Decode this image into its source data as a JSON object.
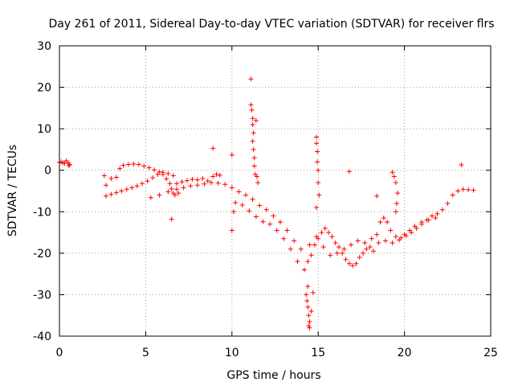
{
  "chart_data": {
    "type": "scatter",
    "title": "Day 261 of 2011, Sidereal Day-to-day VTEC variation (SDTVAR) for receiver flrs",
    "xlabel": "GPS time / hours",
    "ylabel": "SDTVAR / TECUs",
    "xlim": [
      0,
      25
    ],
    "ylim": [
      -40,
      30
    ],
    "x_ticks": [
      0,
      5,
      10,
      15,
      20,
      25
    ],
    "y_ticks": [
      -40,
      -30,
      -20,
      -10,
      0,
      10,
      20,
      30
    ],
    "grid": true,
    "marker": "+",
    "marker_color": "#ff0000",
    "series": [
      {
        "name": "SDTVAR",
        "color": "#ff0000",
        "points": [
          [
            0.0,
            1.9
          ],
          [
            0.1,
            2.0
          ],
          [
            0.2,
            1.8
          ],
          [
            0.3,
            1.7
          ],
          [
            0.4,
            2.3
          ],
          [
            0.5,
            1.8
          ],
          [
            0.55,
            1.1
          ],
          [
            0.6,
            1.4
          ],
          [
            2.6,
            -1.3
          ],
          [
            2.7,
            -3.6
          ],
          [
            3.0,
            -2.0
          ],
          [
            3.3,
            -1.7
          ],
          [
            3.5,
            0.4
          ],
          [
            3.7,
            1.2
          ],
          [
            4.0,
            1.4
          ],
          [
            4.3,
            1.5
          ],
          [
            4.6,
            1.4
          ],
          [
            4.9,
            1.0
          ],
          [
            5.2,
            0.6
          ],
          [
            5.5,
            0.1
          ],
          [
            5.8,
            -0.4
          ],
          [
            6.0,
            -1.0
          ],
          [
            6.2,
            -2.1
          ],
          [
            6.4,
            -3.2
          ],
          [
            6.5,
            -4.5
          ],
          [
            6.6,
            -5.5
          ],
          [
            6.7,
            -6.0
          ],
          [
            6.9,
            -5.5
          ],
          [
            2.7,
            -6.2
          ],
          [
            3.0,
            -5.8
          ],
          [
            3.3,
            -5.4
          ],
          [
            3.6,
            -5.0
          ],
          [
            3.9,
            -4.6
          ],
          [
            4.2,
            -4.2
          ],
          [
            4.5,
            -3.8
          ],
          [
            4.8,
            -3.2
          ],
          [
            5.1,
            -2.6
          ],
          [
            5.4,
            -1.8
          ],
          [
            5.7,
            -1.0
          ],
          [
            6.0,
            -0.5
          ],
          [
            6.3,
            -0.8
          ],
          [
            6.6,
            -1.3
          ],
          [
            6.8,
            -3.2
          ],
          [
            7.1,
            -2.8
          ],
          [
            7.4,
            -2.5
          ],
          [
            7.7,
            -2.2
          ],
          [
            8.0,
            -2.3
          ],
          [
            8.3,
            -2.0
          ],
          [
            8.6,
            -2.6
          ],
          [
            8.9,
            -1.5
          ],
          [
            9.1,
            -1.0
          ],
          [
            5.3,
            -6.6
          ],
          [
            5.8,
            -6.0
          ],
          [
            6.3,
            -5.2
          ],
          [
            6.8,
            -4.6
          ],
          [
            7.2,
            -4.2
          ],
          [
            7.6,
            -3.8
          ],
          [
            8.0,
            -3.6
          ],
          [
            8.4,
            -3.3
          ],
          [
            8.8,
            -3.0
          ],
          [
            9.2,
            -3.1
          ],
          [
            9.6,
            -3.4
          ],
          [
            10.0,
            -4.2
          ],
          [
            10.4,
            -5.2
          ],
          [
            10.8,
            -6.0
          ],
          [
            11.2,
            -7.0
          ],
          [
            11.6,
            -8.5
          ],
          [
            12.0,
            -9.5
          ],
          [
            12.4,
            -11.0
          ],
          [
            12.8,
            -12.5
          ],
          [
            13.2,
            -14.5
          ],
          [
            13.6,
            -17.0
          ],
          [
            14.0,
            -19.0
          ],
          [
            10.2,
            -7.8
          ],
          [
            10.6,
            -8.4
          ],
          [
            11.0,
            -9.8
          ],
          [
            11.4,
            -11.2
          ],
          [
            11.8,
            -12.4
          ],
          [
            12.2,
            -13.0
          ],
          [
            12.6,
            -14.5
          ],
          [
            13.0,
            -16.5
          ],
          [
            13.4,
            -19.0
          ],
          [
            13.8,
            -22.0
          ],
          [
            14.2,
            -24.0
          ],
          [
            14.4,
            -22.0
          ],
          [
            14.6,
            -20.5
          ],
          [
            14.8,
            -18.0
          ],
          [
            15.0,
            -16.5
          ],
          [
            15.2,
            -15.0
          ],
          [
            15.4,
            -14.0
          ],
          [
            15.6,
            -15.0
          ],
          [
            15.8,
            -16.0
          ],
          [
            16.0,
            -17.5
          ],
          [
            16.2,
            -18.5
          ],
          [
            16.4,
            -20.0
          ],
          [
            16.6,
            -21.5
          ],
          [
            16.8,
            -22.5
          ],
          [
            17.0,
            -23.0
          ],
          [
            17.2,
            -22.5
          ],
          [
            17.4,
            -21.0
          ],
          [
            17.6,
            -20.0
          ],
          [
            17.8,
            -19.0
          ],
          [
            18.0,
            -18.5
          ],
          [
            18.2,
            -19.5
          ],
          [
            18.4,
            -15.5
          ],
          [
            18.6,
            -12.5
          ],
          [
            18.8,
            -11.5
          ],
          [
            19.0,
            -12.5
          ],
          [
            19.2,
            -14.5
          ],
          [
            19.5,
            -16.0
          ],
          [
            19.8,
            -16.3
          ],
          [
            20.1,
            -15.8
          ],
          [
            20.4,
            -15.0
          ],
          [
            20.7,
            -14.0
          ],
          [
            21.0,
            -13.0
          ],
          [
            21.3,
            -12.0
          ],
          [
            21.6,
            -11.0
          ],
          [
            21.9,
            -10.5
          ],
          [
            22.2,
            -9.5
          ],
          [
            22.5,
            -8.0
          ],
          [
            22.8,
            -6.0
          ],
          [
            23.1,
            -5.0
          ],
          [
            23.4,
            -4.6
          ],
          [
            23.7,
            -4.7
          ],
          [
            24.0,
            -4.8
          ],
          [
            14.5,
            -18.0
          ],
          [
            14.9,
            -16.0
          ],
          [
            15.3,
            -18.5
          ],
          [
            15.7,
            -20.5
          ],
          [
            16.1,
            -20.0
          ],
          [
            16.5,
            -19.0
          ],
          [
            16.9,
            -18.0
          ],
          [
            17.3,
            -17.0
          ],
          [
            17.7,
            -17.5
          ],
          [
            18.1,
            -16.5
          ],
          [
            18.5,
            -17.5
          ],
          [
            18.9,
            -17.0
          ],
          [
            19.3,
            -17.5
          ],
          [
            19.7,
            -16.8
          ],
          [
            20.0,
            -15.5
          ],
          [
            20.3,
            -14.5
          ],
          [
            20.6,
            -13.5
          ],
          [
            21.0,
            -12.5
          ],
          [
            21.4,
            -12.0
          ],
          [
            21.8,
            -11.5
          ],
          [
            14.4,
            -28.0
          ],
          [
            14.3,
            -30.0
          ],
          [
            14.35,
            -31.5
          ],
          [
            14.4,
            -33.0
          ],
          [
            14.45,
            -35.0
          ],
          [
            14.5,
            -36.5
          ],
          [
            14.45,
            -37.5
          ],
          [
            14.5,
            -38.0
          ],
          [
            14.6,
            -34.0
          ],
          [
            14.7,
            -29.5
          ],
          [
            11.1,
            22.0
          ],
          [
            11.1,
            15.8
          ],
          [
            11.15,
            14.5
          ],
          [
            11.2,
            12.5
          ],
          [
            11.2,
            11.0
          ],
          [
            11.25,
            9.0
          ],
          [
            11.2,
            7.0
          ],
          [
            11.25,
            5.0
          ],
          [
            11.3,
            3.0
          ],
          [
            11.3,
            1.0
          ],
          [
            11.35,
            -1.0
          ],
          [
            11.4,
            12.0
          ],
          [
            11.45,
            -1.5
          ],
          [
            11.5,
            -3.0
          ],
          [
            14.9,
            8.0
          ],
          [
            14.9,
            6.5
          ],
          [
            14.95,
            4.5
          ],
          [
            14.95,
            2.0
          ],
          [
            15.0,
            0.0
          ],
          [
            15.0,
            -3.0
          ],
          [
            15.05,
            -6.0
          ],
          [
            14.9,
            -9.0
          ],
          [
            19.3,
            -0.5
          ],
          [
            19.4,
            -1.5
          ],
          [
            19.5,
            -3.0
          ],
          [
            19.6,
            -5.5
          ],
          [
            19.55,
            -8.0
          ],
          [
            19.5,
            -10.0
          ],
          [
            16.8,
            -0.3
          ],
          [
            23.3,
            1.3
          ],
          [
            18.4,
            -6.2
          ],
          [
            8.9,
            5.3
          ],
          [
            10.0,
            3.7
          ],
          [
            10.0,
            -14.5
          ],
          [
            6.5,
            -11.8
          ],
          [
            10.1,
            -10.0
          ],
          [
            9.3,
            -1.2
          ]
        ]
      }
    ]
  }
}
